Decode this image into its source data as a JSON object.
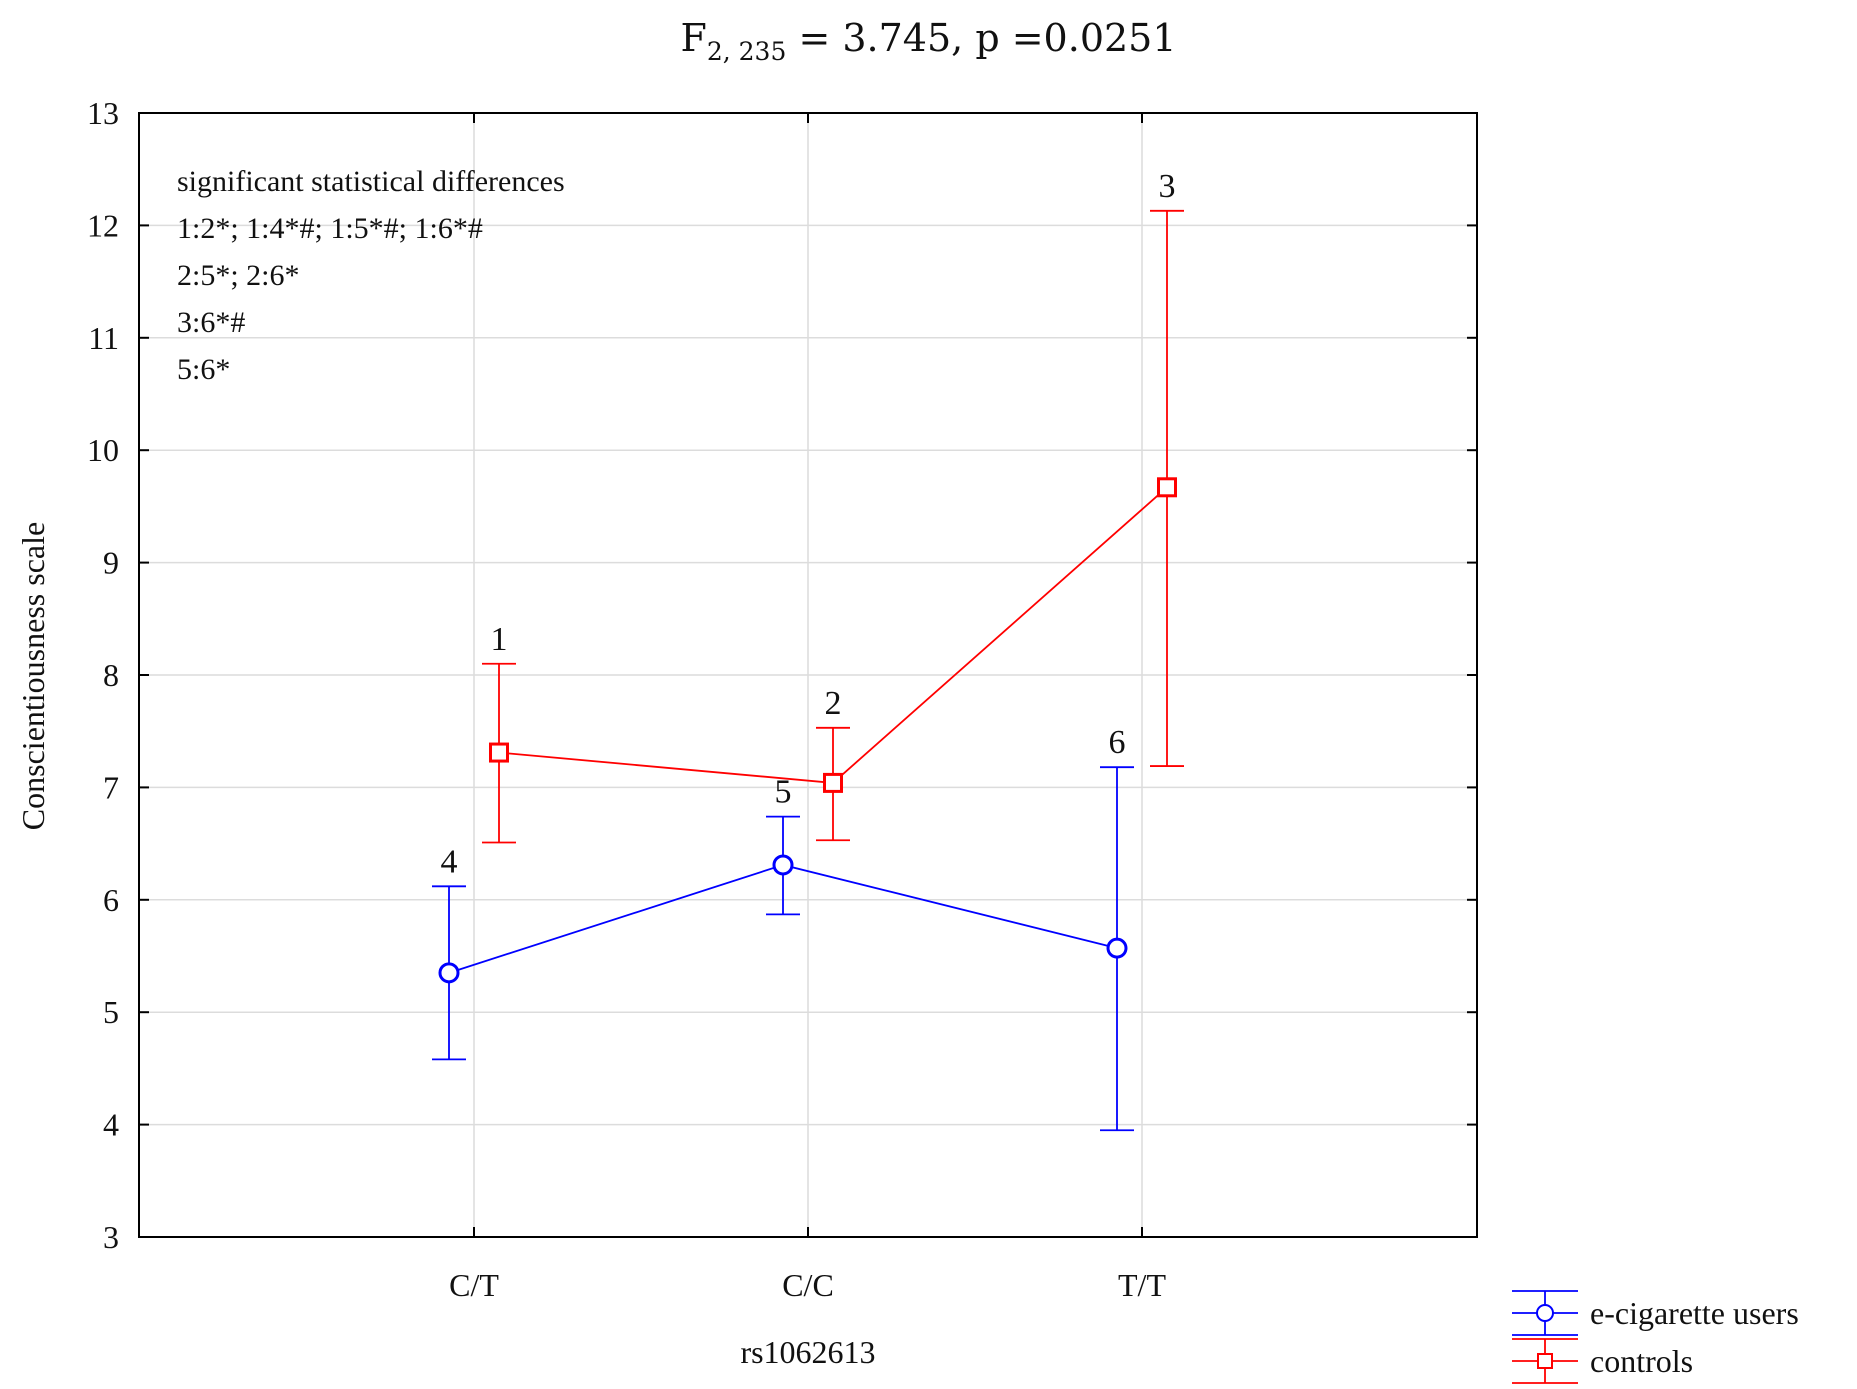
{
  "chart_data": {
    "type": "line",
    "title": {
      "prefix": "F",
      "subscript": "2, 235",
      "rest": " = 3.745, p =0.0251"
    },
    "xlabel": "rs1062613",
    "ylabel": "Conscientiousness scale",
    "categories": [
      "C/T",
      "C/C",
      "T/T"
    ],
    "ylim": [
      3,
      13
    ],
    "yticks": [
      3,
      4,
      5,
      6,
      7,
      8,
      9,
      10,
      11,
      12,
      13
    ],
    "grid": true,
    "legend_position": "bottom-right, outside plot",
    "series": [
      {
        "name": "e-cigarette users",
        "color": "#0000ff",
        "marker": "circle",
        "values": [
          5.35,
          6.31,
          5.57
        ],
        "lower": [
          4.58,
          5.87,
          3.95
        ],
        "upper": [
          6.12,
          6.74,
          7.18
        ],
        "point_labels": [
          "4",
          "5",
          "6"
        ]
      },
      {
        "name": "controls",
        "color": "#ff0000",
        "marker": "square",
        "values": [
          7.31,
          7.04,
          9.67
        ],
        "lower": [
          6.51,
          6.53,
          7.19
        ],
        "upper": [
          8.1,
          7.53,
          12.13
        ],
        "point_labels": [
          "1",
          "2",
          "3"
        ]
      }
    ],
    "annotation_lines": [
      "significant statistical differences",
      "1:2*; 1:4*#; 1:5*#; 1:6*#",
      "2:5*; 2:6*",
      "3:6*#",
      "5:6*"
    ]
  }
}
